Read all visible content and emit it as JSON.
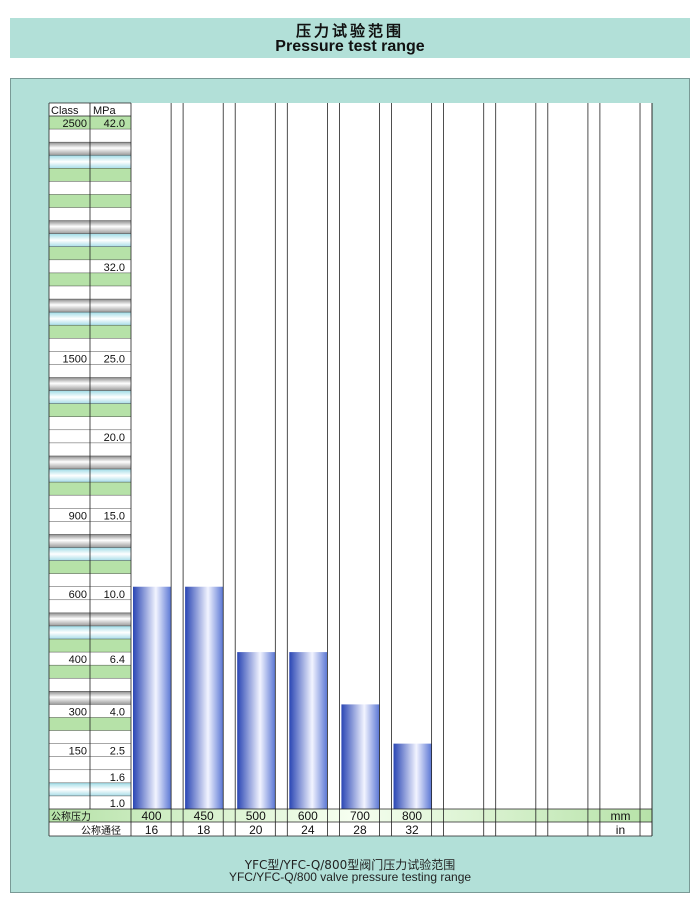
{
  "header": {
    "title_cn": "压力试验范围",
    "title_en": "Pressure test range"
  },
  "footer": {
    "caption_cn": "YFC型/YFC-Q/800型阀门压力试验范围",
    "caption_en": "YFC/YFC-Q/800 valve pressure testing range"
  },
  "scale": {
    "class_header": "Class",
    "mpa_header": "MPa",
    "rows": [
      {
        "mpa": 42.0,
        "class_label": "2500",
        "mpa_label": "42.0"
      },
      {
        "mpa": 32.0,
        "class_label": "",
        "mpa_label": "32.0"
      },
      {
        "mpa": 25.0,
        "class_label": "1500",
        "mpa_label": "25.0"
      },
      {
        "mpa": 20.0,
        "class_label": "",
        "mpa_label": "20.0"
      },
      {
        "mpa": 15.0,
        "class_label": "900",
        "mpa_label": "15.0"
      },
      {
        "mpa": 10.0,
        "class_label": "600",
        "mpa_label": "10.0"
      },
      {
        "mpa": 6.4,
        "class_label": "400",
        "mpa_label": "6.4"
      },
      {
        "mpa": 4.0,
        "class_label": "300",
        "mpa_label": "4.0"
      },
      {
        "mpa": 2.5,
        "class_label": "150",
        "mpa_label": "2.5"
      },
      {
        "mpa": 1.6,
        "class_label": "",
        "mpa_label": "1.6"
      },
      {
        "mpa": 1.0,
        "class_label": "",
        "mpa_label": "1.0"
      }
    ]
  },
  "axis": {
    "row1_label": "公称压力",
    "row2_label": "公称通径",
    "unit1": "mm",
    "unit2": "in"
  },
  "chart_data": {
    "type": "bar",
    "categories": [
      "400",
      "450",
      "500",
      "600",
      "700",
      "800"
    ],
    "categories_in": [
      "16",
      "18",
      "20",
      "24",
      "28",
      "32"
    ],
    "empty_columns": 4,
    "values": [
      10.0,
      10.0,
      6.4,
      6.4,
      4.0,
      2.5
    ],
    "ylim": [
      1.0,
      42.0
    ],
    "ytick_labels": [
      "42.0",
      "32.0",
      "25.0",
      "20.0",
      "15.0",
      "10.0",
      "6.4",
      "4.0",
      "2.5",
      "1.6",
      "1.0"
    ],
    "y_scale": "nonlinear",
    "grid": true,
    "bar_color": "#3858c8",
    "bar_highlight": "#f2f4ff"
  },
  "colors": {
    "background": "#b2e0d8",
    "row_green": "#b6e2a8",
    "row_gray": "#b8b8b8",
    "row_lightblue": "#c4ecf2"
  }
}
